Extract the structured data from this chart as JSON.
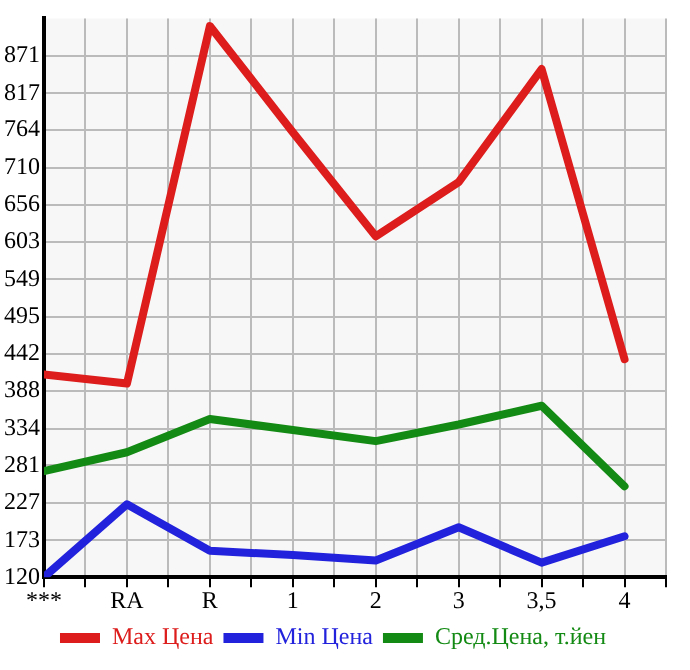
{
  "chart_data": {
    "type": "line",
    "categories": [
      "***",
      "RA",
      "R",
      "1",
      "2",
      "3",
      "3,5",
      "4"
    ],
    "series": [
      {
        "name": "Max Цена",
        "color": "#dd1c1c",
        "values": [
          412,
          399,
          914,
          761,
          611,
          689,
          852,
          434
        ]
      },
      {
        "name": "Min Цена",
        "color": "#2222dd",
        "values": [
          120,
          225,
          158,
          152,
          144,
          192,
          141,
          179
        ]
      },
      {
        "name": "Сред.Цена, т.йен",
        "color": "#138a13",
        "values": [
          273,
          300,
          348,
          332,
          316,
          340,
          367,
          251
        ]
      }
    ],
    "ylim": [
      120,
      925
    ],
    "yticks": [
      120,
      173,
      227,
      281,
      334,
      388,
      442,
      495,
      549,
      603,
      656,
      710,
      764,
      817,
      871
    ],
    "grid": true,
    "legend": "bottom",
    "marker": "none",
    "line_style": "solid"
  }
}
